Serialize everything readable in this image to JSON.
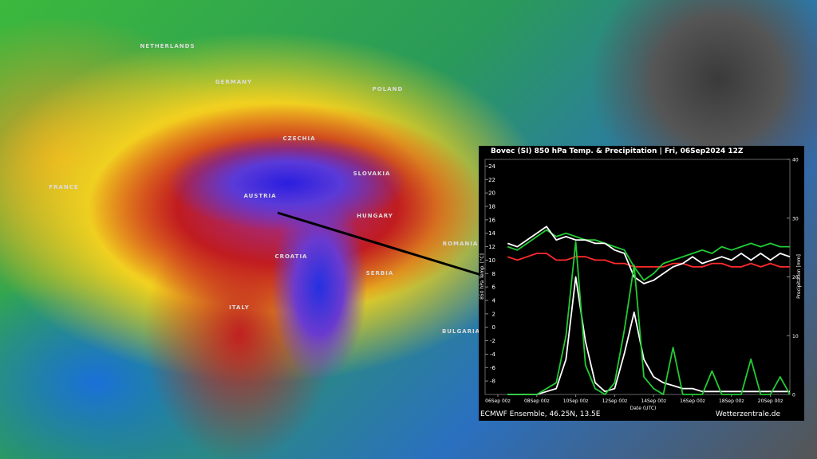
{
  "map": {
    "labels": [
      "NETHERLANDS",
      "GERMANY",
      "POLAND",
      "CZECHIA",
      "SLOVAKIA",
      "AUSTRIA",
      "FRANCE",
      "HUNGARY",
      "CROATIA",
      "SERBIA",
      "ROMANIA",
      "ITALY",
      "BULGARIA"
    ]
  },
  "chart_data": {
    "type": "line",
    "title": "Bovec  (SI)  850 hPa Temp. & Precipitation | Fri, 06Sep2024 12Z",
    "ylabel": "850 hPa Temp. [°C]",
    "y2label": "Precipitation [mm]",
    "xlabel": "Date (UTC)",
    "source": "ECMWF Ensemble, 46.25N, 13.5E",
    "credit": "Wetterzentrale.de",
    "x": [
      "06Sep 12z",
      "07Sep 00z",
      "07Sep 12z",
      "08Sep 00z",
      "08Sep 12z",
      "09Sep 00z",
      "09Sep 12z",
      "10Sep 00z",
      "10Sep 12z",
      "11Sep 00z",
      "11Sep 12z",
      "12Sep 00z",
      "12Sep 12z",
      "13Sep 00z",
      "13Sep 12z",
      "14Sep 00z",
      "14Sep 12z",
      "15Sep 00z",
      "15Sep 12z",
      "16Sep 00z",
      "16Sep 12z",
      "17Sep 00z",
      "17Sep 12z",
      "18Sep 00z",
      "18Sep 12z",
      "19Sep 00z",
      "19Sep 12z",
      "20Sep 00z",
      "20Sep 12z",
      "21Sep 00z"
    ],
    "xlim": [
      "06Sep 00z",
      "21Sep 00z"
    ],
    "xticks": [
      "06Sep 00z",
      "08Sep 00z",
      "10Sep 00z",
      "12Sep 00z",
      "14Sep 00z",
      "16Sep 00z",
      "18Sep 00z",
      "20Sep 00z"
    ],
    "ylim": [
      -10,
      25
    ],
    "yticks": [
      -8,
      -6,
      -4,
      -2,
      0,
      2,
      4,
      6,
      8,
      10,
      12,
      14,
      16,
      18,
      20,
      22,
      24
    ],
    "y2lim": [
      0,
      40
    ],
    "y2ticks": [
      0,
      10,
      20,
      30,
      40
    ],
    "series": [
      {
        "color": "#ff2a2a",
        "values": [
          10.5,
          10,
          10.5,
          11,
          11,
          10,
          10,
          10.5,
          10.5,
          10,
          10,
          9.5,
          9.5,
          9,
          9,
          9,
          9,
          9.5,
          9.5,
          9,
          9,
          9.5,
          9.5,
          9,
          9,
          9.5,
          9,
          9.5,
          9,
          9
        ]
      },
      {
        "color": "#22cc33",
        "values": [
          12,
          11.5,
          12.5,
          13.5,
          14.5,
          13.5,
          14,
          13.5,
          13,
          13,
          12.5,
          12,
          11.5,
          9,
          7,
          8,
          9.5,
          10,
          10.5,
          11,
          11.5,
          11,
          12,
          11.5,
          12,
          12.5,
          12,
          12.5,
          12,
          12
        ]
      },
      {
        "color": "#ffffff",
        "values": [
          12.5,
          12,
          13,
          14,
          15,
          13,
          13.5,
          13,
          13,
          12.5,
          12.5,
          11.5,
          11,
          7.5,
          6.5,
          7,
          8,
          9,
          9.5,
          10.5,
          9.5,
          10,
          10.5,
          10,
          11,
          10,
          11,
          10,
          11,
          10.5
        ]
      },
      {
        "color": "#ffffff",
        "axis": "y2",
        "values": [
          0,
          0,
          0,
          0,
          0.5,
          1,
          6,
          20,
          9,
          2,
          0.5,
          1,
          7,
          14,
          6,
          3,
          2,
          1.5,
          1,
          1,
          0.5,
          0.5,
          0.5,
          0.5,
          0.5,
          0.5,
          0.5,
          0.5,
          0.5,
          0.5
        ]
      },
      {
        "color": "#22cc33",
        "axis": "y2",
        "values": [
          0,
          0,
          0,
          0,
          1,
          2,
          10,
          26,
          5,
          1,
          0,
          2,
          11,
          22,
          3,
          1,
          0,
          8,
          0,
          0,
          0,
          4,
          0,
          0,
          0,
          6,
          0,
          0,
          3,
          0
        ]
      }
    ]
  }
}
